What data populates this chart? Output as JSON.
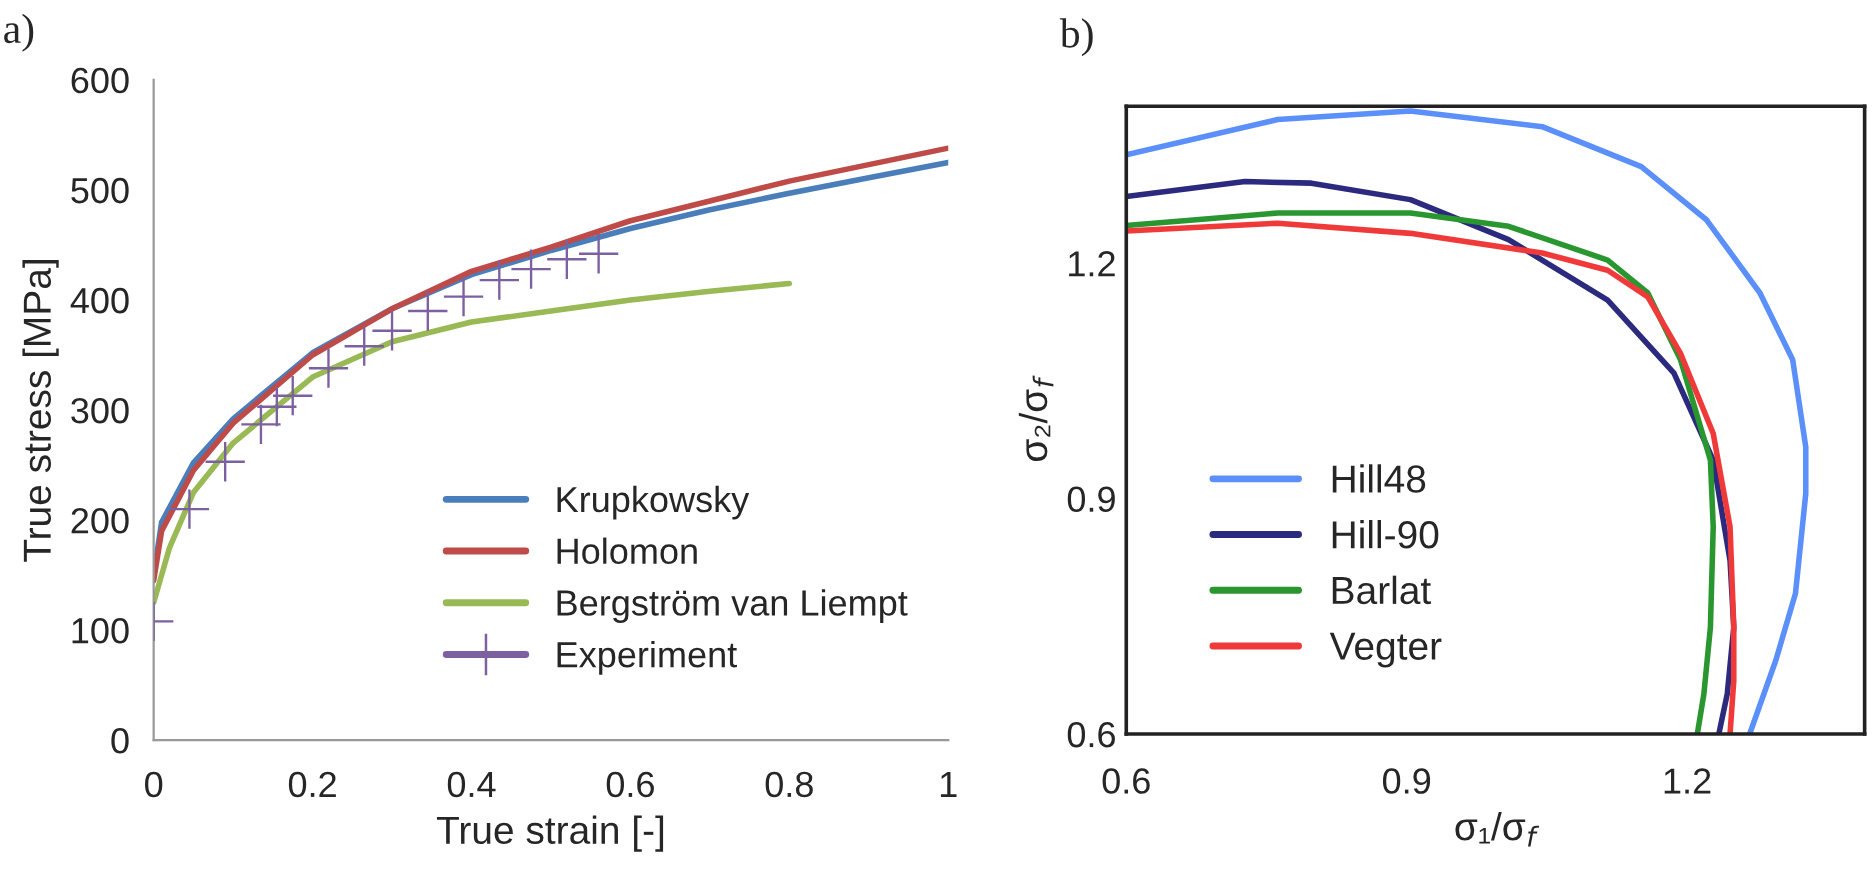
{
  "chart_data": [
    {
      "type": "line",
      "xlabel": "True strain [-]",
      "ylabel": "True stress [MPa]",
      "annotations": [
        "a)"
      ],
      "xlim": [
        0,
        1
      ],
      "ylim": [
        0,
        600
      ],
      "xticks": [
        0,
        0.2,
        0.4,
        0.6,
        0.8,
        1
      ],
      "yticks": [
        0,
        100,
        200,
        300,
        400,
        500,
        600
      ],
      "grid": false,
      "legend": "bottom right",
      "series": [
        {
          "name": "Krupkowsky",
          "color": "#4a7ebb",
          "x": [
            0,
            0.01,
            0.05,
            0.1,
            0.2,
            0.3,
            0.4,
            0.5,
            0.6,
            0.7,
            0.8,
            0.9,
            1
          ],
          "values": [
            150,
            198,
            252,
            292,
            352,
            392,
            423,
            445,
            465,
            482,
            497,
            511,
            525
          ]
        },
        {
          "name": "Holomon",
          "color": "#be4b48",
          "x": [
            0,
            0.01,
            0.05,
            0.1,
            0.2,
            0.3,
            0.4,
            0.5,
            0.6,
            0.7,
            0.8,
            0.9,
            1
          ],
          "values": [
            145,
            190,
            245,
            288,
            350,
            392,
            426,
            448,
            472,
            490,
            508,
            523,
            538
          ]
        },
        {
          "name": "Bergström van Liempt",
          "color": "#98b954",
          "x": [
            0,
            0.02,
            0.05,
            0.1,
            0.2,
            0.3,
            0.4,
            0.5,
            0.6,
            0.7,
            0.8
          ],
          "values": [
            125,
            175,
            225,
            270,
            330,
            362,
            380,
            390,
            400,
            408,
            415
          ]
        },
        {
          "name": "Experiment",
          "type": "scatter",
          "marker": "cross",
          "color": "#7d60a0",
          "x": [
            0,
            0.045,
            0.09,
            0.135,
            0.155,
            0.175,
            0.22,
            0.265,
            0.3,
            0.345,
            0.39,
            0.435,
            0.475,
            0.52,
            0.56
          ],
          "values": [
            108,
            210,
            253,
            287,
            303,
            313,
            338,
            358,
            372,
            390,
            403,
            418,
            428,
            437,
            442
          ]
        }
      ]
    },
    {
      "type": "line",
      "xlabel": "σ₁/σ$_{f}$",
      "ylabel": "σ₂/σ$_{f}$",
      "annotations": [
        "b)"
      ],
      "xlim": [
        0.6,
        1.39
      ],
      "ylim": [
        0.6,
        1.4
      ],
      "xticks": [
        0.6,
        0.9,
        1.2
      ],
      "yticks": [
        0.6,
        0.9,
        1.2
      ],
      "grid": false,
      "legend": "bottom left",
      "series": [
        {
          "name": "Hill48",
          "color": "#5b8ff9",
          "x": [
            0.6,
            0.762,
            0.904,
            1.045,
            1.151,
            1.221,
            1.278,
            1.313,
            1.327,
            1.327,
            1.316,
            1.295,
            1.267
          ],
          "values": [
            1.338,
            1.383,
            1.394,
            1.374,
            1.323,
            1.255,
            1.162,
            1.077,
            0.966,
            0.906,
            0.779,
            0.694,
            0.6
          ]
        },
        {
          "name": "Hill-90",
          "color": "#2b2a7e",
          "x": [
            0.6,
            0.727,
            0.798,
            0.904,
            1.009,
            1.115,
            1.186,
            1.228,
            1.246,
            1.25,
            1.243,
            1.234
          ],
          "values": [
            1.285,
            1.304,
            1.302,
            1.281,
            1.23,
            1.153,
            1.06,
            0.949,
            0.821,
            0.736,
            0.651,
            0.6
          ]
        },
        {
          "name": "Barlat",
          "color": "#2a9630",
          "x": [
            0.6,
            0.762,
            0.904,
            1.009,
            1.115,
            1.158,
            1.193,
            1.225,
            1.228,
            1.225,
            1.218,
            1.211
          ],
          "values": [
            1.248,
            1.264,
            1.264,
            1.247,
            1.204,
            1.162,
            1.077,
            0.949,
            0.864,
            0.736,
            0.651,
            0.6
          ]
        },
        {
          "name": "Vegter",
          "color": "#f03a3a",
          "x": [
            0.6,
            0.762,
            0.904,
            1.045,
            1.115,
            1.158,
            1.193,
            1.228,
            1.246,
            1.25,
            1.25,
            1.246
          ],
          "values": [
            1.241,
            1.251,
            1.238,
            1.213,
            1.191,
            1.157,
            1.085,
            0.983,
            0.864,
            0.736,
            0.668,
            0.6
          ]
        }
      ]
    }
  ]
}
